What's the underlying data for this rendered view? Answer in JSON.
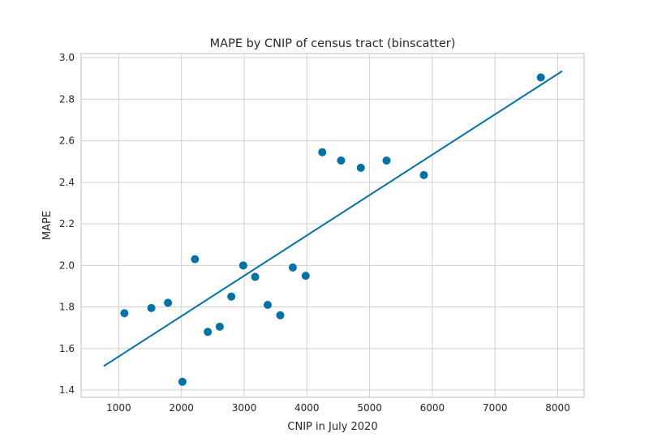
{
  "chart_data": {
    "type": "scatter",
    "title": "MAPE by CNIP of census tract (binscatter)",
    "xlabel": "CNIP in July 2020",
    "ylabel": "MAPE",
    "xlim": [
      400,
      8420
    ],
    "ylim": [
      1.365,
      3.02
    ],
    "xticks": [
      1000,
      2000,
      3000,
      4000,
      5000,
      6000,
      7000,
      8000
    ],
    "yticks": [
      1.4,
      1.6,
      1.8,
      2.0,
      2.2,
      2.4,
      2.6,
      2.8,
      3.0
    ],
    "grid": true,
    "point_color": "#0072a8",
    "line_color": "#0072a8",
    "points": [
      {
        "x": 1090,
        "y": 1.77
      },
      {
        "x": 1520,
        "y": 1.795
      },
      {
        "x": 1785,
        "y": 1.82
      },
      {
        "x": 2015,
        "y": 1.44
      },
      {
        "x": 2215,
        "y": 2.03
      },
      {
        "x": 2420,
        "y": 1.68
      },
      {
        "x": 2610,
        "y": 1.705
      },
      {
        "x": 2795,
        "y": 1.85
      },
      {
        "x": 2985,
        "y": 2.0
      },
      {
        "x": 3175,
        "y": 1.945
      },
      {
        "x": 3375,
        "y": 1.81
      },
      {
        "x": 3575,
        "y": 1.76
      },
      {
        "x": 3775,
        "y": 1.99
      },
      {
        "x": 3980,
        "y": 1.95
      },
      {
        "x": 4245,
        "y": 2.545
      },
      {
        "x": 4545,
        "y": 2.505
      },
      {
        "x": 4860,
        "y": 2.47
      },
      {
        "x": 5270,
        "y": 2.505
      },
      {
        "x": 5865,
        "y": 2.435
      },
      {
        "x": 7730,
        "y": 2.905
      }
    ],
    "fit_line": {
      "x": [
        760,
        8070
      ],
      "y": [
        1.515,
        2.935
      ]
    }
  }
}
